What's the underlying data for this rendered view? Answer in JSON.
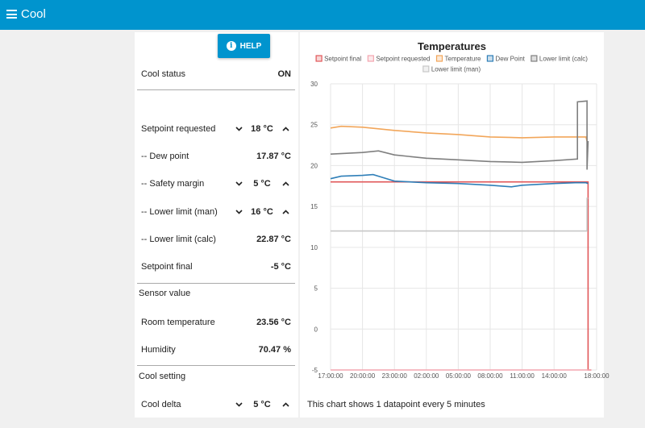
{
  "app": {
    "title": "Cool"
  },
  "help_button": {
    "label": "HELP"
  },
  "controls": {
    "cool_status": {
      "label": "Cool status",
      "value": "ON"
    },
    "setpoint_requested": {
      "label": "Setpoint requested",
      "value": "18 °C"
    },
    "dew_point": {
      "label": "-- Dew point",
      "value": "17.87 °C"
    },
    "safety_margin": {
      "label": "-- Safety margin",
      "value": "5 °C"
    },
    "lower_limit_man": {
      "label": "-- Lower limit (man)",
      "value": "16 °C"
    },
    "lower_limit_calc": {
      "label": "-- Lower limit (calc)",
      "value": "22.87 °C"
    },
    "setpoint_final": {
      "label": "Setpoint final",
      "value": "-5 °C"
    },
    "sensor_section": {
      "label": "Sensor value"
    },
    "room_temperature": {
      "label": "Room temperature",
      "value": "23.56 °C"
    },
    "humidity": {
      "label": "Humidity",
      "value": "70.47 %"
    },
    "cool_setting_section": {
      "label": "Cool setting"
    },
    "cool_delta": {
      "label": "Cool delta",
      "value": "5 °C"
    }
  },
  "chart_footer": "This chart shows 1 datapoint every 5 minutes",
  "chart_data": {
    "type": "line",
    "title": "Temperatures",
    "xlabel": "",
    "ylabel": "",
    "ylim": [
      -5,
      30
    ],
    "yticks": [
      -5,
      0,
      5,
      10,
      15,
      20,
      25,
      30
    ],
    "xticks": [
      "17:00:00",
      "20:00:00",
      "23:00:00",
      "02:00:00",
      "05:00:00",
      "08:00:00",
      "11:00:00",
      "14:00:00",
      "18:00:00"
    ],
    "xtick_hours": [
      0,
      3,
      6,
      9,
      12,
      15,
      18,
      21,
      25
    ],
    "xlim_hours": [
      0,
      25
    ],
    "grid": true,
    "legend_position": "top",
    "series": [
      {
        "name": "Setpoint final",
        "color": "#e15759",
        "points": [
          [
            0,
            18
          ],
          [
            24.2,
            18
          ],
          [
            24.2,
            -5
          ],
          [
            24.5,
            -5
          ]
        ]
      },
      {
        "name": "Setpoint requested",
        "color": "#f4a6b0",
        "points": [
          [
            0,
            -5
          ],
          [
            24.5,
            -5
          ]
        ]
      },
      {
        "name": "Temperature",
        "color": "#f2a65a",
        "points": [
          [
            0,
            24.6
          ],
          [
            1,
            24.8
          ],
          [
            3,
            24.7
          ],
          [
            6,
            24.3
          ],
          [
            9,
            24.0
          ],
          [
            12,
            23.8
          ],
          [
            15,
            23.5
          ],
          [
            18,
            23.4
          ],
          [
            21,
            23.5
          ],
          [
            24,
            23.5
          ],
          [
            24.1,
            23
          ],
          [
            24.2,
            22.8
          ]
        ]
      },
      {
        "name": "Dew Point",
        "color": "#2f7fb8",
        "points": [
          [
            0,
            18.4
          ],
          [
            1,
            18.7
          ],
          [
            3,
            18.8
          ],
          [
            4,
            18.9
          ],
          [
            5,
            18.5
          ],
          [
            6,
            18.1
          ],
          [
            9,
            17.9
          ],
          [
            12,
            17.8
          ],
          [
            15,
            17.6
          ],
          [
            17,
            17.4
          ],
          [
            18,
            17.6
          ],
          [
            21,
            17.8
          ],
          [
            23,
            17.9
          ],
          [
            24,
            17.9
          ],
          [
            24.2,
            17.8
          ]
        ]
      },
      {
        "name": "Lower limit (calc)",
        "color": "#7f7f7f",
        "points": [
          [
            0,
            21.4
          ],
          [
            3,
            21.6
          ],
          [
            4.5,
            21.8
          ],
          [
            6,
            21.3
          ],
          [
            9,
            20.9
          ],
          [
            12,
            20.7
          ],
          [
            15,
            20.5
          ],
          [
            18,
            20.4
          ],
          [
            21,
            20.6
          ],
          [
            23.2,
            20.8
          ],
          [
            23.2,
            27.8
          ],
          [
            24.1,
            27.9
          ],
          [
            24.1,
            19.5
          ],
          [
            24.2,
            23
          ]
        ]
      },
      {
        "name": "Lower limit (man)",
        "color": "#c7c7c7",
        "points": [
          [
            0,
            12
          ],
          [
            24.1,
            12
          ],
          [
            24.1,
            16
          ],
          [
            24.2,
            16
          ]
        ]
      }
    ]
  }
}
